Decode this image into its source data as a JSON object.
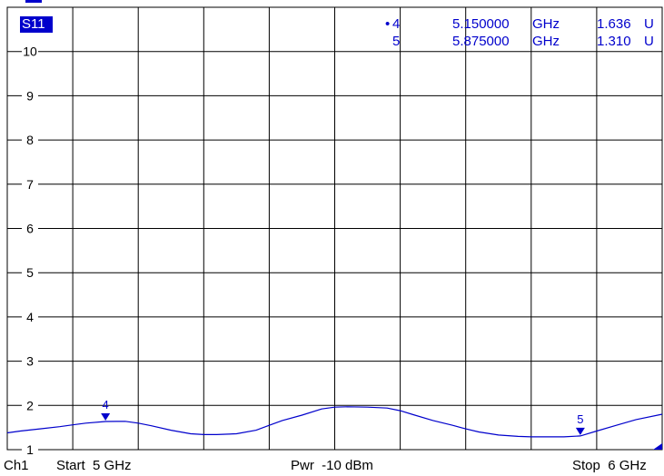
{
  "chart_data": {
    "type": "line",
    "trace_label": "S11",
    "x_start_ghz": 5,
    "x_stop_ghz": 6,
    "ylim": [
      1,
      11
    ],
    "y_ticks": [
      "10",
      "9",
      "8",
      "7",
      "6",
      "5",
      "4",
      "3",
      "2",
      "1"
    ],
    "grid": true,
    "series": [
      {
        "x": [
          5.0,
          5.02,
          5.05,
          5.08,
          5.1,
          5.12,
          5.15,
          5.18,
          5.2,
          5.22,
          5.25,
          5.28,
          5.3,
          5.32,
          5.35,
          5.38,
          5.4,
          5.42,
          5.45,
          5.48,
          5.5,
          5.52,
          5.55,
          5.58,
          5.6,
          5.62,
          5.65,
          5.68,
          5.7,
          5.72,
          5.75,
          5.78,
          5.8,
          5.82,
          5.85,
          5.875,
          5.9,
          5.93,
          5.96,
          6.0
        ],
        "y": [
          1.38,
          1.42,
          1.47,
          1.52,
          1.56,
          1.6,
          1.636,
          1.64,
          1.6,
          1.54,
          1.44,
          1.36,
          1.34,
          1.34,
          1.36,
          1.44,
          1.55,
          1.66,
          1.78,
          1.92,
          1.96,
          1.97,
          1.96,
          1.94,
          1.88,
          1.79,
          1.66,
          1.55,
          1.47,
          1.4,
          1.33,
          1.3,
          1.29,
          1.29,
          1.29,
          1.31,
          1.42,
          1.55,
          1.68,
          1.8
        ]
      }
    ],
    "markers": [
      {
        "id": "4",
        "x": 5.15,
        "y": 1.636,
        "freq_text": "5.150000",
        "unit": "GHz",
        "value_text": "1.636",
        "value_unit": "U",
        "active": true
      },
      {
        "id": "5",
        "x": 5.875,
        "y": 1.31,
        "freq_text": "5.875000",
        "unit": "GHz",
        "value_text": "1.310",
        "value_unit": "U",
        "active": false
      }
    ],
    "footer": {
      "channel": "Ch1",
      "start": "Start  5 GHz",
      "power": "Pwr  -10 dBm",
      "stop": "Stop  6 GHz"
    },
    "colors": {
      "trace": "#0000cc",
      "grid": "#000000",
      "background": "#ffffff"
    }
  }
}
